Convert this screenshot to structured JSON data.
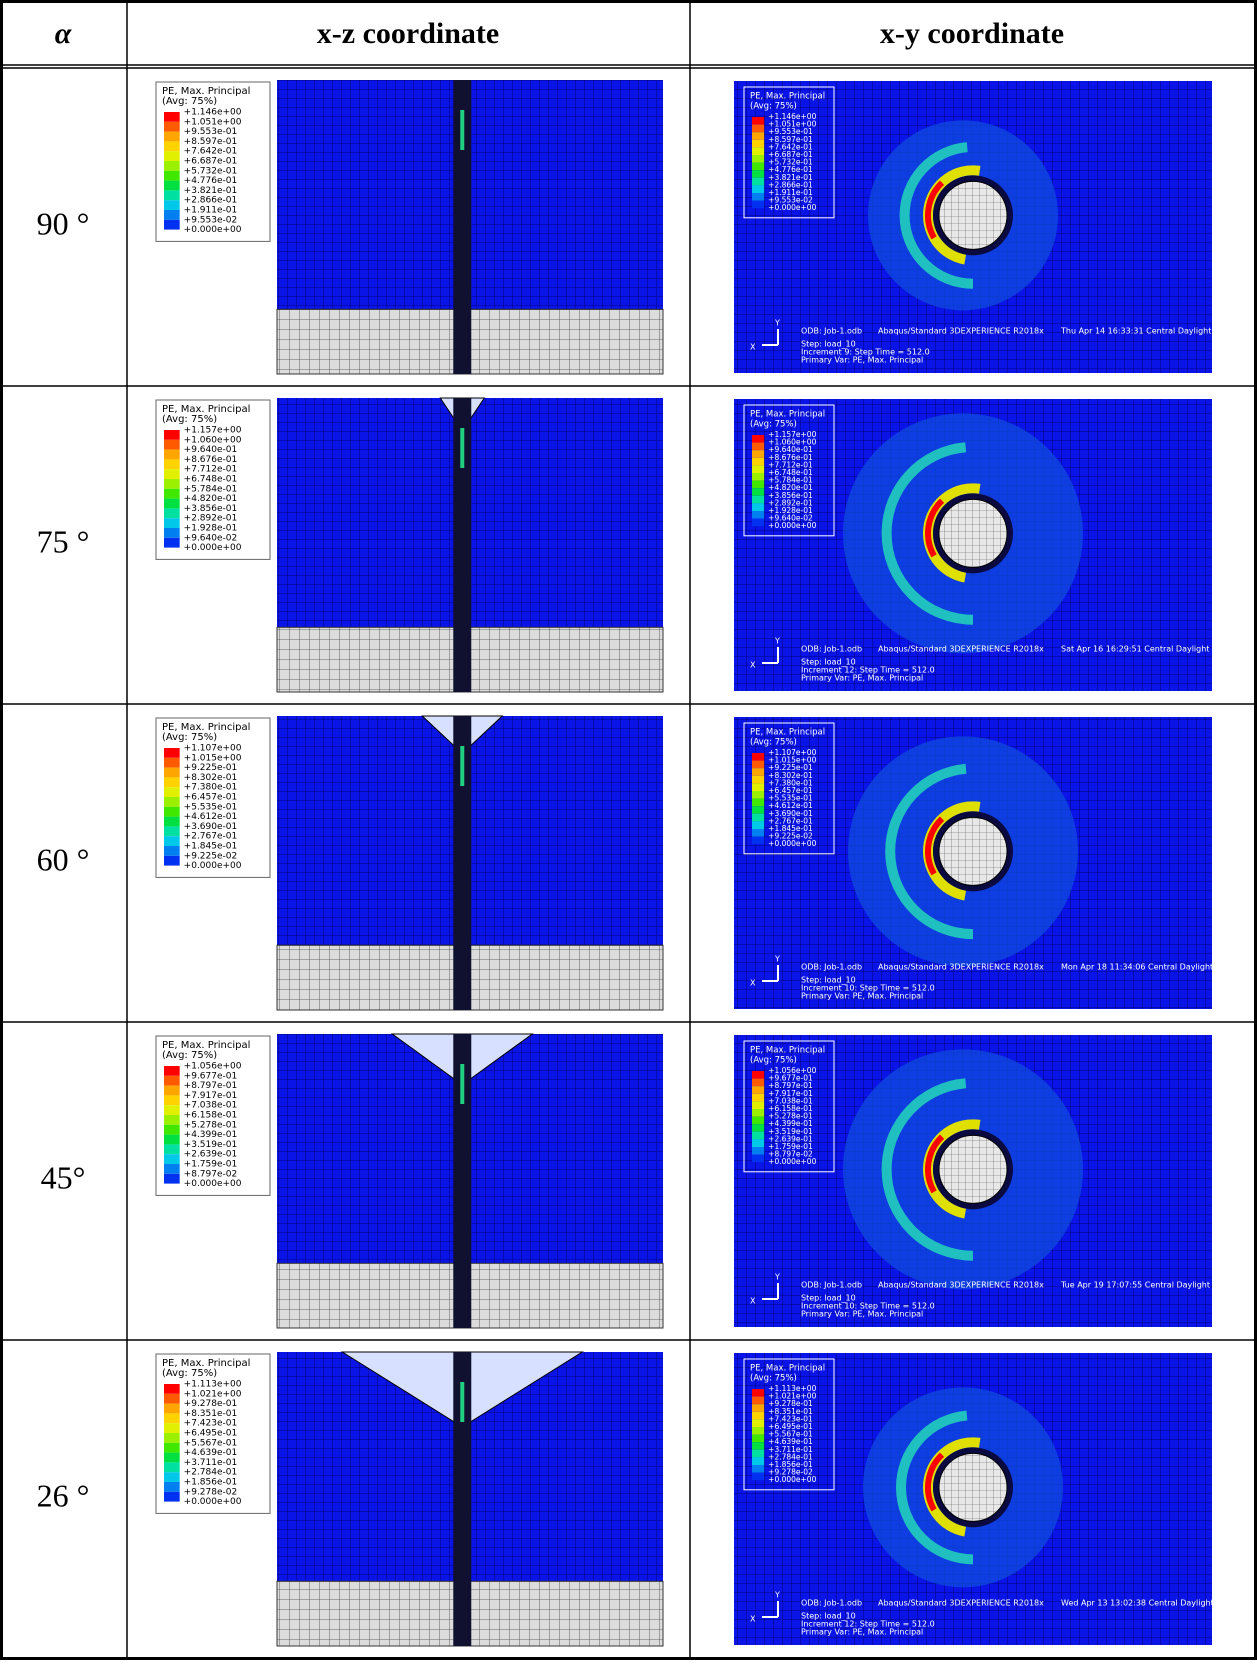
{
  "header": [
    "α",
    "x-z coordinate",
    "x-y coordinate"
  ],
  "legend_title": "PE, Max. Principal",
  "legend_avg": "(Avg: 75%)",
  "odb": "ODB: Job-1.odb",
  "software": "Abaqus/Standard 3DEXPERIENCE R2018x",
  "step": "Step: load_10",
  "primary_var": "Primary Var: PE, Max. Principal",
  "triad": [
    "Y",
    "X"
  ],
  "rows": [
    {
      "angle": "90 °",
      "values": [
        "+1.146e+00",
        "+1.051e+00",
        "+9.553e-01",
        "+8.597e-01",
        "+7.642e-01",
        "+6.687e-01",
        "+5.732e-01",
        "+4.776e-01",
        "+3.821e-01",
        "+2.866e-01",
        "+1.911e-01",
        "+9.553e-02",
        "+0.000e+00"
      ],
      "date": "Thu Apr 14 16:33:31 Central Daylight",
      "increment": "Increment      9: Step Time =     512.0"
    },
    {
      "angle": "75 °",
      "values": [
        "+1.157e+00",
        "+1.060e+00",
        "+9.640e-01",
        "+8.676e-01",
        "+7.712e-01",
        "+6.748e-01",
        "+5.784e-01",
        "+4.820e-01",
        "+3.856e-01",
        "+2.892e-01",
        "+1.928e-01",
        "+9.640e-02",
        "+0.000e+00"
      ],
      "date": "Sat Apr 16 16:29:51 Central Daylight",
      "increment": "Increment     12: Step Time =     512.0"
    },
    {
      "angle": "60 °",
      "values": [
        "+1.107e+00",
        "+1.015e+00",
        "+9.225e-01",
        "+8.302e-01",
        "+7.380e-01",
        "+6.457e-01",
        "+5.535e-01",
        "+4.612e-01",
        "+3.690e-01",
        "+2.767e-01",
        "+1.845e-01",
        "+9.225e-02",
        "+0.000e+00"
      ],
      "date": "Mon Apr 18 11:34:06 Central Daylight",
      "increment": "Increment     10: Step Time =     512.0"
    },
    {
      "angle": "45°",
      "values": [
        "+1.056e+00",
        "+9.677e-01",
        "+8.797e-01",
        "+7.917e-01",
        "+7.038e-01",
        "+6.158e-01",
        "+5.278e-01",
        "+4.399e-01",
        "+3.519e-01",
        "+2.639e-01",
        "+1.759e-01",
        "+8.797e-02",
        "+0.000e+00"
      ],
      "date": "Tue Apr 19 17:07:55 Central Daylight",
      "increment": "Increment     10: Step Time =     512.0"
    },
    {
      "angle": "26 °",
      "values": [
        "+1.113e+00",
        "+1.021e+00",
        "+9.278e-01",
        "+8.351e-01",
        "+7.423e-01",
        "+6.495e-01",
        "+5.567e-01",
        "+4.639e-01",
        "+3.711e-01",
        "+2.784e-01",
        "+1.856e-01",
        "+9.278e-02",
        "+0.000e+00"
      ],
      "date": "Wed Apr 13 13:02:38 Central Daylight",
      "increment": "Increment     12: Step Time =     512.0"
    }
  ]
}
